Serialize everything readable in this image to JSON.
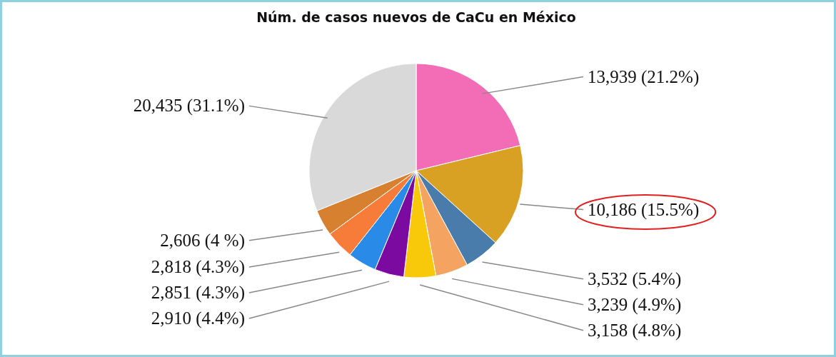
{
  "chart_data": {
    "type": "pie",
    "title": "Núm. de casos nuevos de CaCu en México",
    "categories": [
      null,
      null,
      null,
      null,
      null,
      null,
      null,
      null,
      null,
      null
    ],
    "values": [
      13939,
      10186,
      3532,
      3239,
      3158,
      2910,
      2851,
      2818,
      2606,
      20435
    ],
    "value_labels": [
      "13,939 (21.2%)",
      "10,186 (15.5%)",
      "3,532 (5.4%)",
      "3,239 (4.9%)",
      "3,158 (4.8%)",
      "2,910 (4.4%)",
      "2,851 (4.3%)",
      "2,818 (4.3%)",
      "2,606 (4 %)",
      "20,435 (31.1%)"
    ],
    "colors": [
      "#f26cb6",
      "#d9a124",
      "#4a7cab",
      "#f4a460",
      "#f8c80a",
      "#7a0aa0",
      "#2a8ae8",
      "#f77c3a",
      "#d68030",
      "#d9d9d9"
    ],
    "legend": false
  }
}
